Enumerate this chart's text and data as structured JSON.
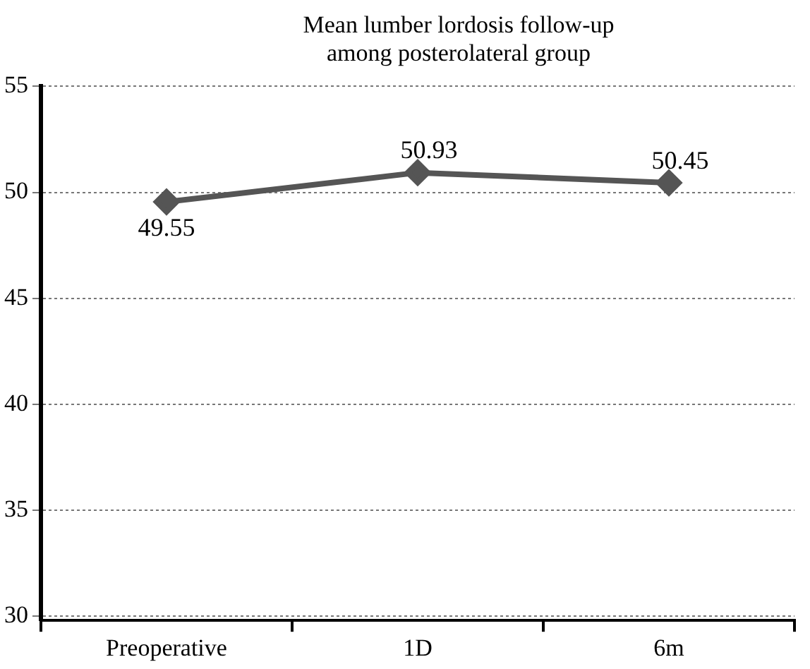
{
  "chart_data": {
    "type": "line",
    "title": "Mean lumber lordosis follow-up among posterolateral group",
    "categories": [
      "Preoperative",
      "1D",
      "6m"
    ],
    "series": [
      {
        "color": "#555555",
        "values": [
          49.55,
          50.93,
          50.45
        ]
      }
    ],
    "ylim": [
      29.8,
      55
    ],
    "yticks": [
      30,
      35,
      40,
      45,
      50,
      55
    ],
    "grid": "y",
    "marker": "diamond",
    "line_style": "solid",
    "data_labels": true,
    "legend": false
  }
}
